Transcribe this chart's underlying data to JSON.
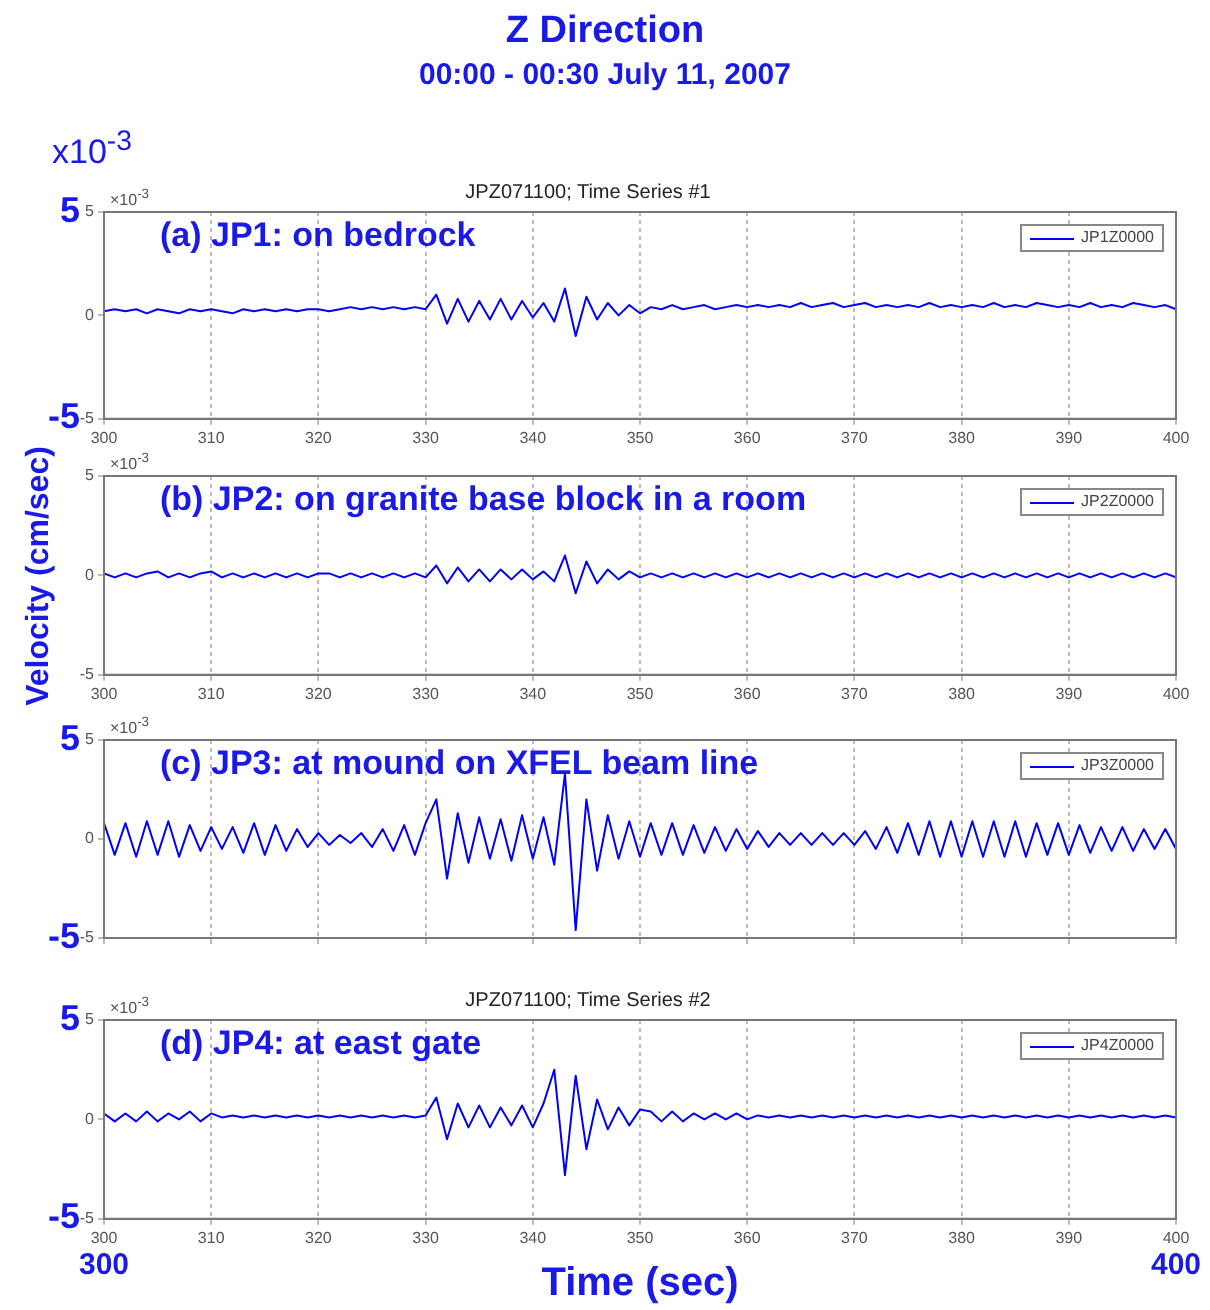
{
  "chart_data": [
    {
      "type": "line",
      "title": "JPZ071100; Time Series #1",
      "x": [
        300,
        301,
        302,
        303,
        304,
        305,
        306,
        307,
        308,
        309,
        310,
        311,
        312,
        313,
        314,
        315,
        316,
        317,
        318,
        319,
        320,
        321,
        322,
        323,
        324,
        325,
        326,
        327,
        328,
        329,
        330,
        331,
        332,
        333,
        334,
        335,
        336,
        337,
        338,
        339,
        340,
        341,
        342,
        343,
        344,
        345,
        346,
        347,
        348,
        349,
        350,
        351,
        352,
        353,
        354,
        355,
        356,
        357,
        358,
        359,
        360,
        361,
        362,
        363,
        364,
        365,
        366,
        367,
        368,
        369,
        370,
        371,
        372,
        373,
        374,
        375,
        376,
        377,
        378,
        379,
        380,
        381,
        382,
        383,
        384,
        385,
        386,
        387,
        388,
        389,
        390,
        391,
        392,
        393,
        394,
        395,
        396,
        397,
        398,
        399,
        400
      ],
      "series": [
        {
          "name": "JP1Z0000",
          "color": "#0000ff",
          "values": [
            0.2,
            0.3,
            0.2,
            0.3,
            0.1,
            0.3,
            0.2,
            0.1,
            0.3,
            0.2,
            0.3,
            0.2,
            0.1,
            0.3,
            0.2,
            0.3,
            0.2,
            0.3,
            0.2,
            0.3,
            0.3,
            0.2,
            0.3,
            0.4,
            0.3,
            0.4,
            0.3,
            0.4,
            0.3,
            0.4,
            0.3,
            1.0,
            -0.4,
            0.8,
            -0.3,
            0.7,
            -0.2,
            0.8,
            -0.2,
            0.7,
            -0.1,
            0.6,
            -0.3,
            1.3,
            -1.0,
            0.9,
            -0.2,
            0.6,
            0.0,
            0.5,
            0.1,
            0.4,
            0.3,
            0.5,
            0.3,
            0.4,
            0.5,
            0.3,
            0.4,
            0.5,
            0.4,
            0.5,
            0.4,
            0.5,
            0.4,
            0.6,
            0.4,
            0.5,
            0.6,
            0.4,
            0.5,
            0.6,
            0.4,
            0.5,
            0.4,
            0.5,
            0.4,
            0.6,
            0.4,
            0.5,
            0.4,
            0.5,
            0.4,
            0.6,
            0.4,
            0.5,
            0.4,
            0.6,
            0.5,
            0.4,
            0.5,
            0.4,
            0.6,
            0.4,
            0.5,
            0.4,
            0.6,
            0.5,
            0.4,
            0.5,
            0.3
          ]
        }
      ],
      "xlim": [
        300,
        400
      ],
      "xticks": [
        300,
        310,
        320,
        330,
        340,
        350,
        360,
        370,
        380,
        390,
        400
      ],
      "ylim": [
        -5,
        5
      ],
      "yticks": [
        -5,
        0,
        5
      ],
      "grid": "x",
      "legend": "top right",
      "annotations": [
        "Z Direction",
        "00:00 - 00:30  July 11, 2007",
        "(a) JP1: on bedrock",
        "×10$^{-3}$",
        "x10$^{-3}$",
        "5",
        "-5"
      ]
    },
    {
      "type": "line",
      "x": [
        300,
        301,
        302,
        303,
        304,
        305,
        306,
        307,
        308,
        309,
        310,
        311,
        312,
        313,
        314,
        315,
        316,
        317,
        318,
        319,
        320,
        321,
        322,
        323,
        324,
        325,
        326,
        327,
        328,
        329,
        330,
        331,
        332,
        333,
        334,
        335,
        336,
        337,
        338,
        339,
        340,
        341,
        342,
        343,
        344,
        345,
        346,
        347,
        348,
        349,
        350,
        351,
        352,
        353,
        354,
        355,
        356,
        357,
        358,
        359,
        360,
        361,
        362,
        363,
        364,
        365,
        366,
        367,
        368,
        369,
        370,
        371,
        372,
        373,
        374,
        375,
        376,
        377,
        378,
        379,
        380,
        381,
        382,
        383,
        384,
        385,
        386,
        387,
        388,
        389,
        390,
        391,
        392,
        393,
        394,
        395,
        396,
        397,
        398,
        399,
        400
      ],
      "series": [
        {
          "name": "JP2Z0000",
          "color": "#0000ff",
          "values": [
            0.1,
            -0.1,
            0.1,
            -0.1,
            0.1,
            0.2,
            -0.1,
            0.1,
            -0.1,
            0.1,
            0.2,
            -0.1,
            0.1,
            -0.1,
            0.1,
            -0.1,
            0.1,
            -0.1,
            0.1,
            -0.1,
            0.1,
            0.1,
            -0.1,
            0.1,
            -0.1,
            0.1,
            -0.1,
            0.1,
            -0.1,
            0.1,
            -0.1,
            0.5,
            -0.4,
            0.4,
            -0.3,
            0.3,
            -0.3,
            0.3,
            -0.2,
            0.3,
            -0.2,
            0.2,
            -0.3,
            1.0,
            -0.9,
            0.7,
            -0.4,
            0.3,
            -0.2,
            0.2,
            -0.1,
            0.1,
            -0.1,
            0.1,
            -0.1,
            0.1,
            -0.1,
            0.1,
            -0.1,
            0.1,
            -0.1,
            0.1,
            -0.1,
            0.1,
            -0.1,
            0.1,
            -0.1,
            0.1,
            -0.1,
            0.1,
            -0.1,
            0.1,
            -0.1,
            0.1,
            -0.1,
            0.1,
            -0.1,
            0.1,
            -0.1,
            0.1,
            -0.1,
            0.1,
            -0.1,
            0.1,
            -0.1,
            0.1,
            -0.1,
            0.1,
            -0.1,
            0.1,
            -0.1,
            0.1,
            -0.1,
            0.1,
            -0.1,
            0.1,
            -0.1,
            0.1,
            -0.1,
            0.1,
            -0.1
          ]
        }
      ],
      "xlim": [
        300,
        400
      ],
      "xticks": [
        300,
        310,
        320,
        330,
        340,
        350,
        360,
        370,
        380,
        390,
        400
      ],
      "ylim": [
        -5,
        5
      ],
      "yticks": [
        -5,
        0,
        5
      ],
      "grid": "x",
      "legend": "top right",
      "ylabel": "Velocity (cm/sec)",
      "annotations": [
        "(b) JP2: on granite base block in a room",
        "×10$^{-3}$"
      ]
    },
    {
      "type": "line",
      "x": [
        300,
        301,
        302,
        303,
        304,
        305,
        306,
        307,
        308,
        309,
        310,
        311,
        312,
        313,
        314,
        315,
        316,
        317,
        318,
        319,
        320,
        321,
        322,
        323,
        324,
        325,
        326,
        327,
        328,
        329,
        330,
        331,
        332,
        333,
        334,
        335,
        336,
        337,
        338,
        339,
        340,
        341,
        342,
        343,
        344,
        345,
        346,
        347,
        348,
        349,
        350,
        351,
        352,
        353,
        354,
        355,
        356,
        357,
        358,
        359,
        360,
        361,
        362,
        363,
        364,
        365,
        366,
        367,
        368,
        369,
        370,
        371,
        372,
        373,
        374,
        375,
        376,
        377,
        378,
        379,
        380,
        381,
        382,
        383,
        384,
        385,
        386,
        387,
        388,
        389,
        390,
        391,
        392,
        393,
        394,
        395,
        396,
        397,
        398,
        399,
        400
      ],
      "series": [
        {
          "name": "JP3Z0000",
          "color": "#0000ff",
          "values": [
            0.8,
            -0.8,
            0.8,
            -0.9,
            0.9,
            -0.8,
            0.9,
            -0.9,
            0.7,
            -0.6,
            0.6,
            -0.5,
            0.6,
            -0.7,
            0.8,
            -0.8,
            0.7,
            -0.6,
            0.5,
            -0.4,
            0.3,
            -0.3,
            0.2,
            -0.2,
            0.3,
            -0.4,
            0.5,
            -0.6,
            0.7,
            -0.8,
            0.8,
            2.0,
            -2.0,
            1.3,
            -1.2,
            1.1,
            -1.0,
            1.0,
            -1.1,
            1.2,
            -1.0,
            1.1,
            -1.3,
            3.3,
            -4.6,
            2.0,
            -1.6,
            1.2,
            -1.0,
            0.9,
            -0.9,
            0.8,
            -0.8,
            0.8,
            -0.8,
            0.7,
            -0.7,
            0.6,
            -0.6,
            0.5,
            -0.5,
            0.4,
            -0.4,
            0.3,
            -0.3,
            0.3,
            -0.3,
            0.3,
            -0.3,
            0.3,
            -0.3,
            0.4,
            -0.5,
            0.6,
            -0.7,
            0.8,
            -0.8,
            0.9,
            -0.9,
            0.9,
            -0.9,
            0.9,
            -0.9,
            0.9,
            -0.9,
            0.9,
            -0.9,
            0.8,
            -0.8,
            0.8,
            -0.8,
            0.7,
            -0.7,
            0.6,
            -0.6,
            0.6,
            -0.6,
            0.5,
            -0.5,
            0.5,
            -0.5
          ]
        }
      ],
      "xlim": [
        300,
        400
      ],
      "xticks": [
        300,
        310,
        320,
        330,
        340,
        350,
        360,
        370,
        380,
        390,
        400
      ],
      "ylim": [
        -5,
        5
      ],
      "yticks": [
        -5,
        0,
        5
      ],
      "grid": "x",
      "legend": "top right",
      "tick_labels": "y",
      "annotations": [
        "(c) JP3: at mound on XFEL beam line",
        "×10$^{-3}$",
        "5",
        "-5"
      ]
    },
    {
      "type": "line",
      "title": "JPZ071100; Time Series #2",
      "x": [
        300,
        301,
        302,
        303,
        304,
        305,
        306,
        307,
        308,
        309,
        310,
        311,
        312,
        313,
        314,
        315,
        316,
        317,
        318,
        319,
        320,
        321,
        322,
        323,
        324,
        325,
        326,
        327,
        328,
        329,
        330,
        331,
        332,
        333,
        334,
        335,
        336,
        337,
        338,
        339,
        340,
        341,
        342,
        343,
        344,
        345,
        346,
        347,
        348,
        349,
        350,
        351,
        352,
        353,
        354,
        355,
        356,
        357,
        358,
        359,
        360,
        361,
        362,
        363,
        364,
        365,
        366,
        367,
        368,
        369,
        370,
        371,
        372,
        373,
        374,
        375,
        376,
        377,
        378,
        379,
        380,
        381,
        382,
        383,
        384,
        385,
        386,
        387,
        388,
        389,
        390,
        391,
        392,
        393,
        394,
        395,
        396,
        397,
        398,
        399,
        400
      ],
      "series": [
        {
          "name": "JP4Z0000",
          "color": "#0000ff",
          "values": [
            0.3,
            -0.1,
            0.3,
            -0.1,
            0.4,
            -0.1,
            0.3,
            0.0,
            0.4,
            -0.1,
            0.3,
            0.1,
            0.2,
            0.1,
            0.2,
            0.1,
            0.2,
            0.1,
            0.2,
            0.1,
            0.2,
            0.1,
            0.2,
            0.1,
            0.2,
            0.1,
            0.2,
            0.1,
            0.2,
            0.1,
            0.2,
            1.1,
            -1.0,
            0.8,
            -0.4,
            0.7,
            -0.4,
            0.6,
            -0.3,
            0.7,
            -0.4,
            0.8,
            2.5,
            -2.8,
            2.2,
            -1.5,
            1.0,
            -0.5,
            0.6,
            -0.3,
            0.5,
            0.4,
            -0.1,
            0.4,
            -0.1,
            0.3,
            0.0,
            0.3,
            0.0,
            0.3,
            0.0,
            0.2,
            0.1,
            0.2,
            0.1,
            0.2,
            0.1,
            0.2,
            0.1,
            0.2,
            0.1,
            0.2,
            0.1,
            0.2,
            0.1,
            0.2,
            0.1,
            0.2,
            0.1,
            0.2,
            0.1,
            0.2,
            0.1,
            0.2,
            0.1,
            0.2,
            0.1,
            0.2,
            0.1,
            0.2,
            0.1,
            0.2,
            0.1,
            0.2,
            0.1,
            0.2,
            0.1,
            0.2,
            0.1,
            0.2,
            0.1
          ]
        }
      ],
      "xlim": [
        300,
        400
      ],
      "xticks": [
        300,
        310,
        320,
        330,
        340,
        350,
        360,
        370,
        380,
        390,
        400
      ],
      "ylim": [
        -5,
        5
      ],
      "yticks": [
        -5,
        0,
        5
      ],
      "grid": "x",
      "legend": "top right",
      "xlabel": "Time (sec)",
      "annotations": [
        "(d) JP4: at east gate",
        "×10$^{-3}$",
        "5",
        "-5",
        "300",
        "400"
      ]
    }
  ]
}
